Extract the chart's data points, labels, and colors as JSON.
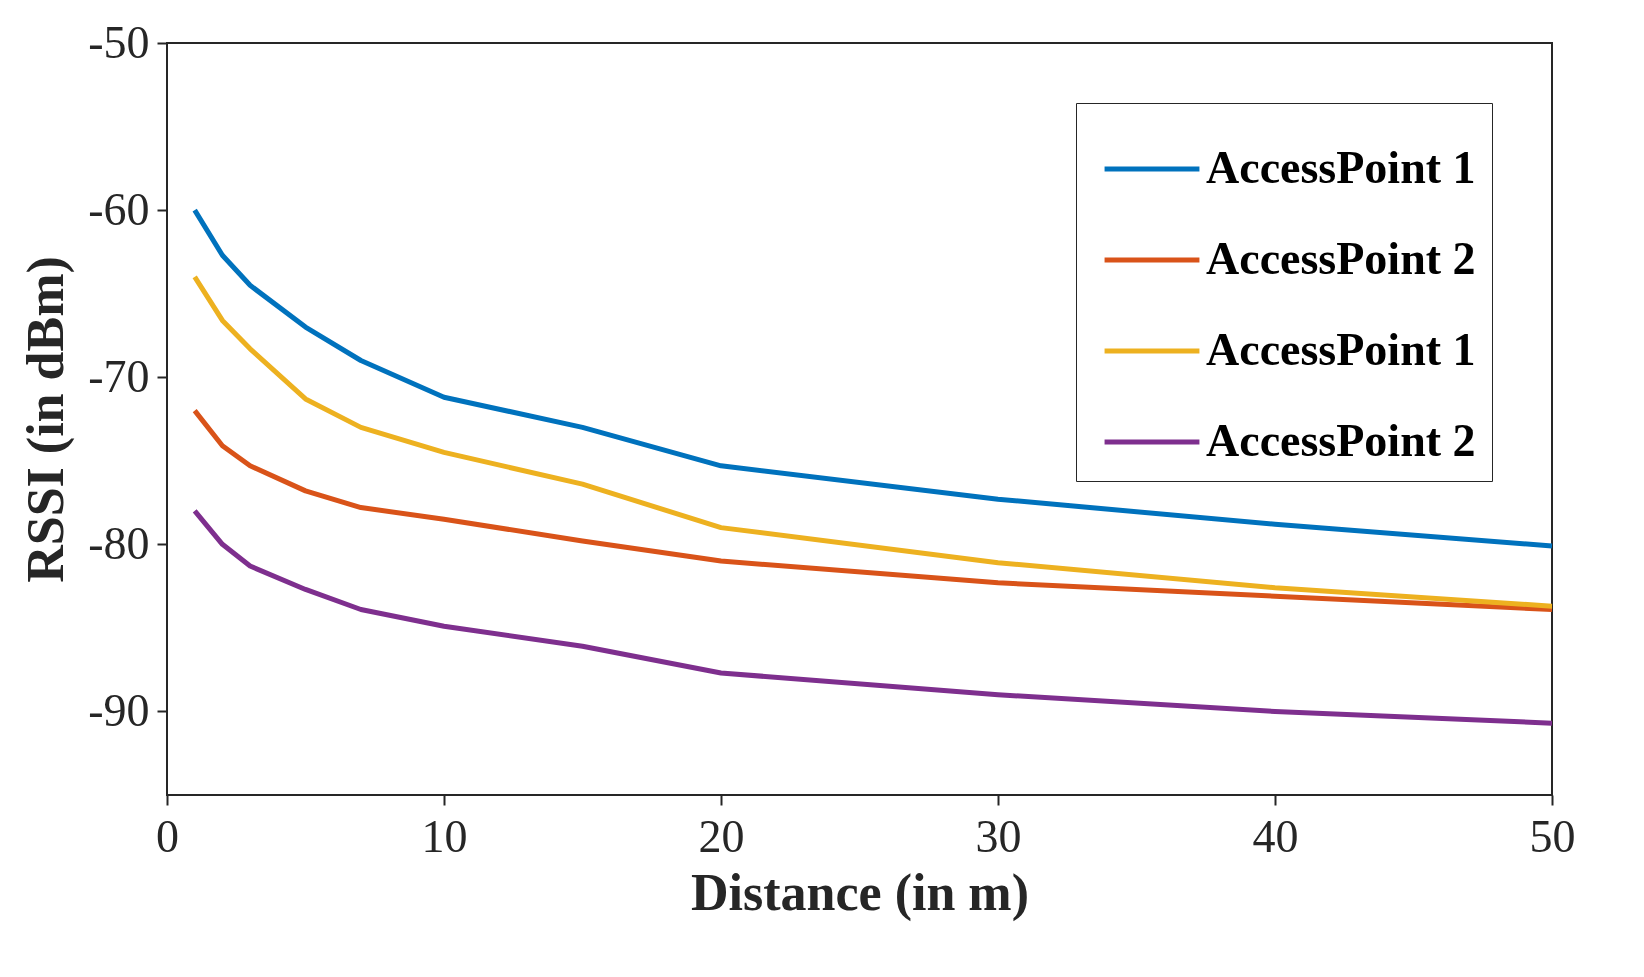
{
  "chart_data": {
    "type": "line",
    "xlabel": "Distance (in m)",
    "ylabel": "RSSI (in dBm)",
    "x": [
      1,
      2,
      3,
      5,
      7,
      10,
      15,
      20,
      30,
      40,
      50
    ],
    "series": [
      {
        "name": "AccessPoint 1",
        "color": "#0072bd",
        "values": [
          -60,
          -62.7,
          -64.5,
          -67.0,
          -69.0,
          -71.2,
          -73.0,
          -75.3,
          -77.3,
          -78.8,
          -80.1
        ]
      },
      {
        "name": "AccessPoint 2",
        "color": "#d95319",
        "values": [
          -72,
          -74.1,
          -75.3,
          -76.8,
          -77.8,
          -78.5,
          -79.8,
          -81.0,
          -82.3,
          -83.1,
          -83.9
        ]
      },
      {
        "name": "AccessPoint 1",
        "color": "#edb120",
        "values": [
          -64,
          -66.6,
          -68.3,
          -71.3,
          -73.0,
          -74.5,
          -76.4,
          -79.0,
          -81.1,
          -82.6,
          -83.7
        ]
      },
      {
        "name": "AccessPoint 2",
        "color": "#7e2f8e",
        "values": [
          -78,
          -80.0,
          -81.3,
          -82.7,
          -83.9,
          -84.9,
          -86.1,
          -87.7,
          -89.0,
          -90.0,
          -90.7
        ]
      }
    ],
    "xlim": [
      0,
      50
    ],
    "xticks": [
      0,
      10,
      20,
      30,
      40,
      50
    ],
    "ylim": [
      -95,
      -50
    ],
    "yticks": [
      -90,
      -80,
      -70,
      -60,
      -50
    ],
    "grid": false,
    "legend": "top right",
    "marker": "none",
    "line_style": "solid"
  }
}
